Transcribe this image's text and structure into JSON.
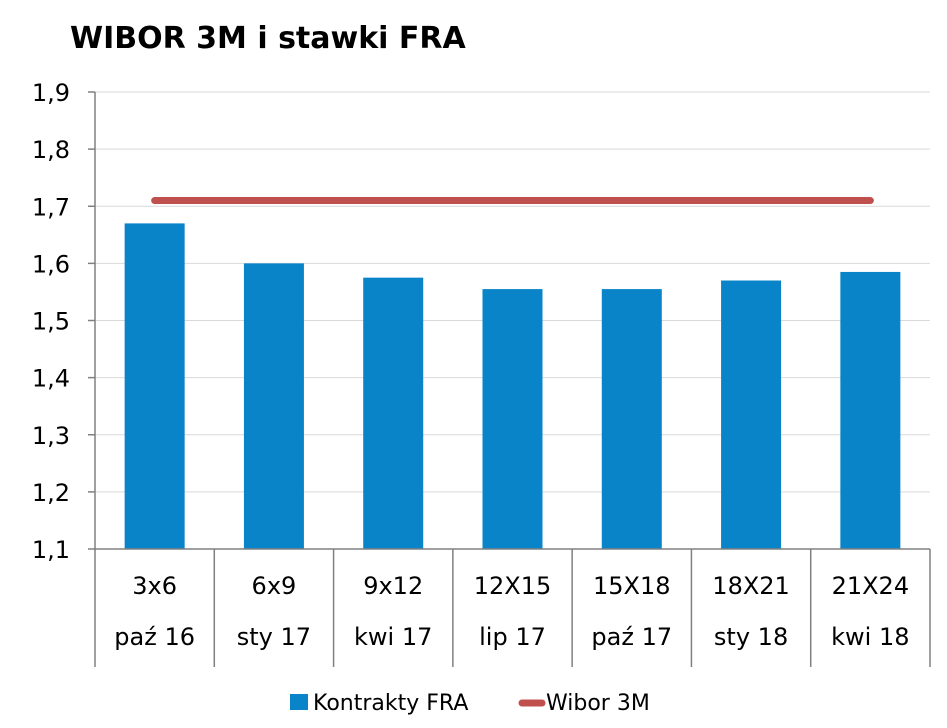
{
  "chart_data": {
    "type": "bar",
    "title": "WIBOR 3M i stawki FRA",
    "categories": [
      "3x6",
      "6x9",
      "9x12",
      "12X15",
      "15X18",
      "18X21",
      "21X24"
    ],
    "category_sublabels": [
      "paź 16",
      "sty 17",
      "kwi 17",
      "lip 17",
      "paź 17",
      "sty 18",
      "kwi 18"
    ],
    "series": [
      {
        "name": "Kontrakty FRA",
        "kind": "bar",
        "color": "#0a84c8",
        "values": [
          1.67,
          1.6,
          1.575,
          1.555,
          1.555,
          1.57,
          1.585
        ]
      },
      {
        "name": "Wibor 3M",
        "kind": "line",
        "color": "#c0504d",
        "values": [
          1.71,
          1.71,
          1.71,
          1.71,
          1.71,
          1.71,
          1.71
        ]
      }
    ],
    "ylim": [
      1.1,
      1.9
    ],
    "yticks": [
      "1,1",
      "1,2",
      "1,3",
      "1,4",
      "1,5",
      "1,6",
      "1,7",
      "1,8",
      "1,9"
    ],
    "grid": true,
    "legend_position": "bottom"
  }
}
